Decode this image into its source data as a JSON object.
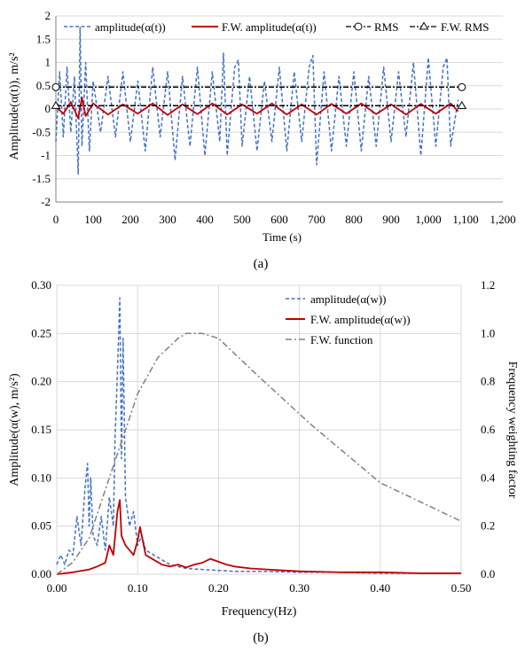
{
  "colors": {
    "amplitude": "#4472C4",
    "fw_amplitude": "#C00000",
    "rms": "#000000",
    "fw_function": "#808080",
    "grid": "#D9D9D9"
  },
  "chart_data": [
    {
      "type": "line",
      "caption": "(a)",
      "xlabel": "Time (s)",
      "ylabel": "Amplitude(α(t)),  m/s²",
      "xlim": [
        0,
        1200
      ],
      "ylim": [
        -2,
        2
      ],
      "xticks": [
        0,
        100,
        200,
        300,
        400,
        500,
        600,
        700,
        800,
        900,
        1000,
        1100,
        1200
      ],
      "xtick_labels": [
        "0",
        "100",
        "200",
        "300",
        "400",
        "500",
        "600",
        "700",
        "800",
        "900",
        "1,000",
        "1,100",
        "1,200"
      ],
      "yticks": [
        -2,
        -1.5,
        -1,
        -0.5,
        0,
        0.5,
        1,
        1.5,
        2
      ],
      "ytick_labels": [
        "-2",
        "-1.5",
        "-1",
        "-0.5",
        "0",
        "0.5",
        "1",
        "1.5",
        "2"
      ],
      "grid": true,
      "legend_position": "top",
      "series": [
        {
          "name": "amplitude(α(t))",
          "style": "dashed",
          "color": "#4472C4",
          "x": [
            0,
            10,
            20,
            30,
            40,
            50,
            60,
            65,
            70,
            80,
            90,
            100,
            120,
            140,
            160,
            180,
            200,
            220,
            240,
            260,
            280,
            300,
            320,
            340,
            360,
            380,
            400,
            420,
            440,
            450,
            460,
            480,
            490,
            500,
            520,
            540,
            560,
            580,
            600,
            620,
            640,
            660,
            680,
            690,
            700,
            720,
            740,
            760,
            780,
            800,
            820,
            840,
            860,
            880,
            900,
            920,
            940,
            960,
            980,
            1000,
            1020,
            1040,
            1050,
            1060,
            1080
          ],
          "y": [
            -0.7,
            0.8,
            -0.6,
            0.9,
            -0.5,
            0.7,
            -1.4,
            1.75,
            -0.8,
            1.0,
            -0.9,
            0.6,
            -0.5,
            0.7,
            -0.6,
            0.8,
            -0.7,
            0.6,
            -0.9,
            0.9,
            -0.6,
            0.8,
            -1.1,
            0.7,
            -0.8,
            0.9,
            -1.0,
            0.8,
            -0.7,
            1.2,
            -1.0,
            0.9,
            1.05,
            -0.8,
            0.7,
            -0.9,
            0.6,
            -0.7,
            0.9,
            -0.9,
            0.8,
            -0.7,
            0.9,
            1.15,
            -1.2,
            0.8,
            -0.9,
            0.7,
            -0.8,
            0.8,
            -0.9,
            0.7,
            -0.8,
            0.9,
            -0.7,
            0.8,
            -0.6,
            1.0,
            -1.0,
            1.1,
            -0.8,
            0.9,
            1.1,
            -0.8,
            0.2
          ]
        },
        {
          "name": "F.W. amplitude(α(t))",
          "style": "solid",
          "color": "#C00000",
          "x": [
            0,
            20,
            40,
            60,
            70,
            80,
            100,
            140,
            180,
            220,
            260,
            300,
            340,
            380,
            420,
            460,
            500,
            540,
            580,
            620,
            660,
            700,
            740,
            780,
            820,
            860,
            900,
            940,
            980,
            1020,
            1060,
            1080
          ],
          "y": [
            0.05,
            -0.1,
            0.15,
            -0.2,
            0.25,
            -0.15,
            0.12,
            -0.12,
            0.1,
            -0.1,
            0.12,
            -0.13,
            0.1,
            -0.11,
            0.12,
            -0.12,
            0.1,
            -0.1,
            0.12,
            -0.12,
            0.1,
            -0.12,
            0.11,
            -0.1,
            0.12,
            -0.11,
            0.1,
            -0.12,
            0.11,
            -0.1,
            0.12,
            -0.05
          ]
        },
        {
          "name": "RMS",
          "style": "dash-dot",
          "marker": "circle",
          "color": "#000000",
          "x": [
            0,
            1090
          ],
          "y": [
            0.47,
            0.47
          ]
        },
        {
          "name": "F.W. RMS",
          "style": "dash-dot",
          "marker": "triangle",
          "color": "#000000",
          "x": [
            0,
            1090
          ],
          "y": [
            0.07,
            0.07
          ]
        }
      ]
    },
    {
      "type": "line",
      "caption": "(b)",
      "xlabel": "Frequency(Hz)",
      "ylabel": "Amplitude(α(w), m/s²)",
      "y2label": "Frequency weighting factor",
      "xlim": [
        0,
        0.5
      ],
      "ylim": [
        0,
        0.3
      ],
      "y2lim": [
        0,
        1.2
      ],
      "xticks": [
        0,
        0.1,
        0.2,
        0.3,
        0.4,
        0.5
      ],
      "xtick_labels": [
        "0.00",
        "0.10",
        "0.20",
        "0.30",
        "0.40",
        "0.50"
      ],
      "yticks": [
        0,
        0.05,
        0.1,
        0.15,
        0.2,
        0.25,
        0.3
      ],
      "ytick_labels": [
        "0.00",
        "0.05",
        "0.10",
        "0.15",
        "0.20",
        "0.25",
        "0.30"
      ],
      "y2ticks": [
        0,
        0.2,
        0.4,
        0.6,
        0.8,
        1.0,
        1.2
      ],
      "y2tick_labels": [
        "0.0",
        "0.2",
        "0.4",
        "0.6",
        "0.8",
        "1.0",
        "1.2"
      ],
      "grid": true,
      "legend_position": "top-right",
      "series": [
        {
          "name": "amplitude(α(w))",
          "style": "dashed",
          "color": "#4472C4",
          "axis": "left",
          "x": [
            0,
            0.005,
            0.01,
            0.015,
            0.02,
            0.025,
            0.03,
            0.035,
            0.038,
            0.04,
            0.042,
            0.045,
            0.05,
            0.055,
            0.06,
            0.065,
            0.07,
            0.072,
            0.075,
            0.078,
            0.08,
            0.082,
            0.085,
            0.09,
            0.095,
            0.1,
            0.105,
            0.11,
            0.12,
            0.13,
            0.14,
            0.15,
            0.16,
            0.18,
            0.2,
            0.22,
            0.25,
            0.3,
            0.35,
            0.4,
            0.45,
            0.5
          ],
          "y": [
            0.01,
            0.02,
            0.01,
            0.025,
            0.02,
            0.06,
            0.03,
            0.09,
            0.115,
            0.05,
            0.1,
            0.04,
            0.03,
            0.06,
            0.025,
            0.08,
            0.05,
            0.14,
            0.21,
            0.287,
            0.12,
            0.245,
            0.08,
            0.05,
            0.065,
            0.03,
            0.04,
            0.025,
            0.02,
            0.015,
            0.01,
            0.008,
            0.006,
            0.005,
            0.004,
            0.003,
            0.003,
            0.002,
            0.002,
            0.001,
            0.001,
            0.001
          ]
        },
        {
          "name": "F.W. amplitude(α(w))",
          "style": "solid",
          "color": "#C00000",
          "axis": "left",
          "x": [
            0,
            0.02,
            0.04,
            0.05,
            0.06,
            0.065,
            0.07,
            0.075,
            0.078,
            0.08,
            0.085,
            0.09,
            0.095,
            0.1,
            0.103,
            0.11,
            0.12,
            0.13,
            0.14,
            0.15,
            0.16,
            0.17,
            0.18,
            0.19,
            0.2,
            0.21,
            0.22,
            0.24,
            0.26,
            0.28,
            0.3,
            0.35,
            0.4,
            0.45,
            0.5
          ],
          "y": [
            0,
            0.002,
            0.005,
            0.008,
            0.012,
            0.03,
            0.02,
            0.065,
            0.077,
            0.04,
            0.03,
            0.025,
            0.02,
            0.035,
            0.049,
            0.02,
            0.015,
            0.01,
            0.008,
            0.01,
            0.007,
            0.01,
            0.012,
            0.016,
            0.013,
            0.01,
            0.008,
            0.006,
            0.005,
            0.004,
            0.003,
            0.002,
            0.002,
            0.001,
            0.001
          ]
        },
        {
          "name": "F.W. function",
          "style": "dash-dot",
          "color": "#808080",
          "axis": "right",
          "x": [
            0.0,
            0.02,
            0.04,
            0.06,
            0.08,
            0.1,
            0.125,
            0.15,
            0.16,
            0.18,
            0.2,
            0.25,
            0.315,
            0.4,
            0.5
          ],
          "y": [
            0.0,
            0.05,
            0.15,
            0.35,
            0.55,
            0.75,
            0.9,
            0.98,
            1.0,
            1.0,
            0.98,
            0.82,
            0.62,
            0.38,
            0.22
          ]
        }
      ]
    }
  ]
}
